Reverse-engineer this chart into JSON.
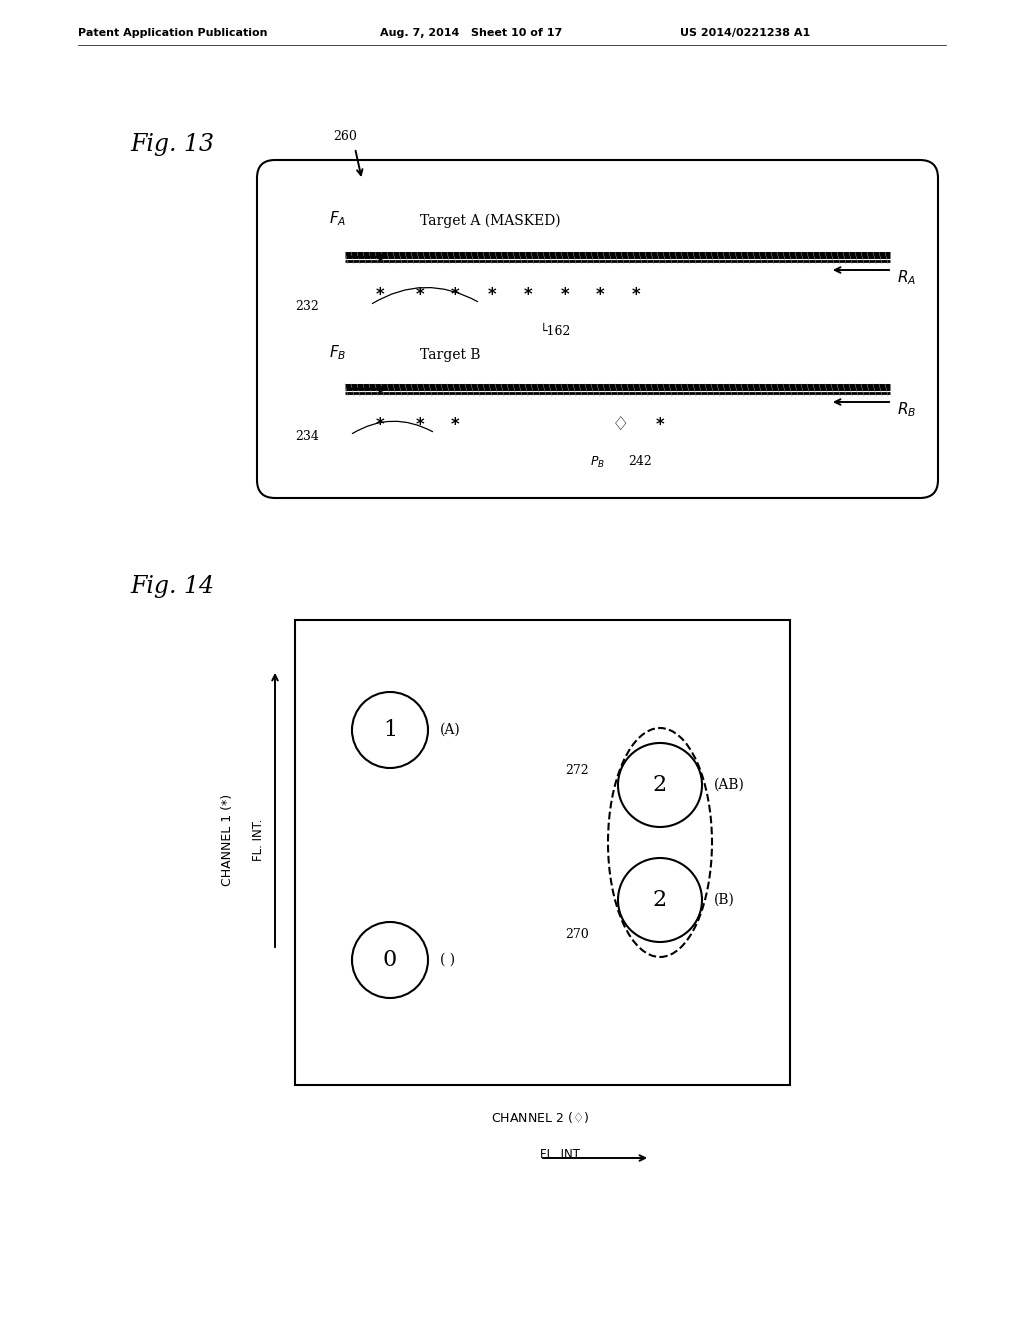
{
  "bg": "#ffffff",
  "black": "#000000",
  "header_left": "Patent Application Publication",
  "header_mid": "Aug. 7, 2014   Sheet 10 of 17",
  "header_right": "US 2014/0221238 A1",
  "fig13_label": "Fig. 13",
  "fig14_label": "Fig. 14"
}
